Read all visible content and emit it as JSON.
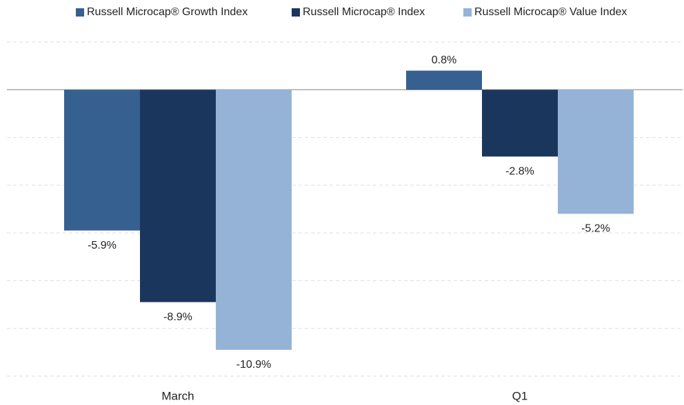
{
  "chart_data": {
    "type": "bar",
    "categories": [
      "March",
      "Q1"
    ],
    "series": [
      {
        "name": "Russell Microcap® Growth Index",
        "color": "#36608f",
        "values": [
          -5.9,
          0.8
        ],
        "value_labels": [
          "-5.9%",
          "0.8%"
        ]
      },
      {
        "name": "Russell Microcap® Index",
        "color": "#1b365d",
        "values": [
          -8.9,
          -2.8
        ],
        "value_labels": [
          "-8.9%",
          "-2.8%"
        ]
      },
      {
        "name": "Russell Microcap® Value Index",
        "color": "#95b3d7",
        "values": [
          -10.9,
          -5.2
        ],
        "value_labels": [
          "-10.9%",
          "-5.2%"
        ]
      }
    ],
    "ylim": [
      -12,
      2
    ],
    "yticks": [
      -12,
      -10,
      -8,
      -6,
      -4,
      -2,
      0,
      2
    ],
    "grid": true,
    "legend": "top"
  }
}
